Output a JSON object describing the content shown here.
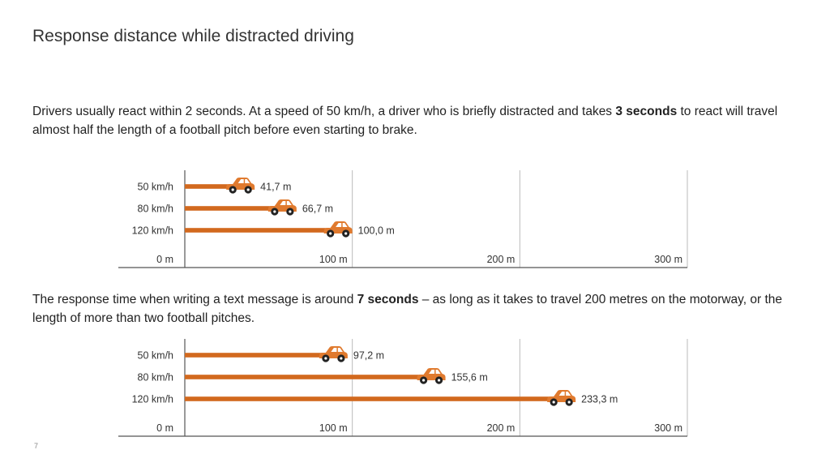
{
  "slide": {
    "title": "Response distance while distracted driving",
    "page_number": "7"
  },
  "para1": {
    "before": "Drivers usually react within 2 seconds. At a speed of 50 km/h, a driver who is briefly distracted and takes ",
    "bold": "3 seconds",
    "after": " to react will travel almost half the length of a football pitch before even starting to brake."
  },
  "para2": {
    "before": "The response time when writing a text message is around ",
    "bold": "7 seconds",
    "after": " – as long as it takes to travel 200 metres on the motorway, or the length of more than two football pitches."
  },
  "colors": {
    "bar": "#d2691e",
    "car": "#e07a2e",
    "axis": "#555555",
    "grid": "#bbbbbb",
    "text": "#333333"
  },
  "chart_data": [
    {
      "type": "bar",
      "orientation": "horizontal",
      "categories": [
        "50 km/h",
        "80 km/h",
        "120 km/h"
      ],
      "values": [
        41.7,
        66.7,
        100.0
      ],
      "value_labels": [
        "41,7 m",
        "66,7 m",
        "100,0 m"
      ],
      "x_tick_values": [
        0,
        100,
        200,
        300
      ],
      "x_tick_labels": [
        "0 m",
        "100 m",
        "200 m",
        "300 m"
      ],
      "xlim": [
        0,
        300
      ],
      "grid": true,
      "marker": "car-icon"
    },
    {
      "type": "bar",
      "orientation": "horizontal",
      "categories": [
        "50 km/h",
        "80 km/h",
        "120 km/h"
      ],
      "values": [
        97.2,
        155.6,
        233.3
      ],
      "value_labels": [
        "97,2 m",
        "155,6 m",
        "233,3 m"
      ],
      "x_tick_values": [
        0,
        100,
        200,
        300
      ],
      "x_tick_labels": [
        "0 m",
        "100 m",
        "200 m",
        "300 m"
      ],
      "xlim": [
        0,
        300
      ],
      "grid": true,
      "marker": "car-icon"
    }
  ]
}
